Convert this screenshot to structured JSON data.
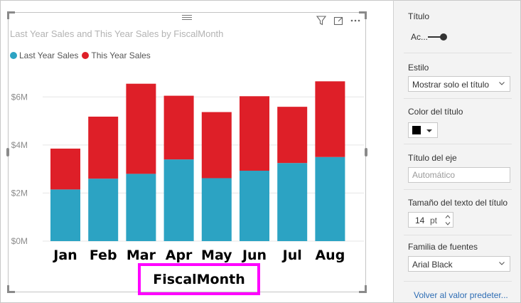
{
  "visual": {
    "title": "Last Year Sales and This Year Sales by FiscalMonth",
    "x_axis_title": "FiscalMonth",
    "legend": [
      {
        "label": "Last Year Sales",
        "color": "#2ca3c3"
      },
      {
        "label": "This Year Sales",
        "color": "#de1f28"
      }
    ],
    "header_icons": [
      "filter-icon",
      "focus-mode-icon",
      "more-options-icon"
    ]
  },
  "chart_data": {
    "type": "bar",
    "stacked": true,
    "title": "Last Year Sales and This Year Sales by FiscalMonth",
    "xlabel": "FiscalMonth",
    "ylabel": "",
    "categories": [
      "Jan",
      "Feb",
      "Mar",
      "Apr",
      "May",
      "Jun",
      "Jul",
      "Aug"
    ],
    "series": [
      {
        "name": "Last Year Sales",
        "color": "#2ca3c3",
        "values": [
          2.15,
          2.6,
          2.8,
          3.4,
          2.62,
          2.93,
          3.25,
          3.5
        ]
      },
      {
        "name": "This Year Sales",
        "color": "#de1f28",
        "values": [
          1.7,
          2.58,
          3.75,
          2.65,
          2.75,
          3.1,
          2.34,
          3.15
        ]
      }
    ],
    "y_unit": "millions",
    "ylim": [
      0,
      7
    ],
    "y_ticks": [
      0,
      2,
      4,
      6
    ],
    "y_tick_labels": [
      "$0M",
      "$2M",
      "$4M",
      "$6M"
    ],
    "grid": true,
    "legend_position": "top-left"
  },
  "format_pane": {
    "title_label": "Título",
    "toggle_text": "Ac...",
    "toggle_state": "on",
    "style_label": "Estilo",
    "style_value": "Mostrar solo el título",
    "title_color_label": "Color del título",
    "title_color": "#000000",
    "axis_title_label": "Título del eje",
    "axis_title_placeholder": "Automático",
    "text_size_label": "Tamaño del texto del título",
    "text_size_value": "14",
    "text_size_unit": "pt",
    "font_family_label": "Familia de fuentes",
    "font_family_value": "Arial Black",
    "reset_link": "Volver al valor predeter..."
  }
}
